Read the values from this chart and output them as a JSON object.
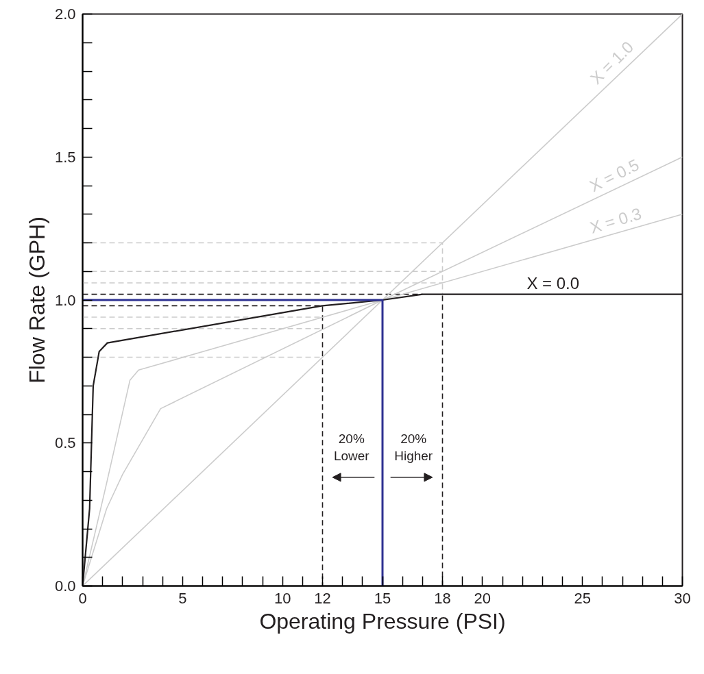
{
  "chart_data": {
    "type": "line",
    "xlabel": "Operating Pressure (PSI)",
    "ylabel": "Flow Rate (GPH)",
    "xlim": [
      0,
      30
    ],
    "ylim": [
      0,
      2.0
    ],
    "xticks": [
      0,
      {
        "value": 1,
        "label": null
      },
      {
        "value": 2,
        "label": null
      },
      {
        "value": 3,
        "label": null
      },
      {
        "value": 4,
        "label": null
      },
      5,
      {
        "value": 6,
        "label": null
      },
      {
        "value": 7,
        "label": null
      },
      {
        "value": 8,
        "label": null
      },
      {
        "value": 9,
        "label": null
      },
      10,
      {
        "value": 11,
        "label": null
      },
      12,
      {
        "value": 13,
        "label": null
      },
      {
        "value": 14,
        "label": null
      },
      15,
      {
        "value": 16,
        "label": null
      },
      {
        "value": 17,
        "label": null
      },
      18,
      {
        "value": 19,
        "label": null
      },
      20,
      {
        "value": 21,
        "label": null
      },
      {
        "value": 22,
        "label": null
      },
      {
        "value": 23,
        "label": null
      },
      {
        "value": 24,
        "label": null
      },
      25,
      {
        "value": 26,
        "label": null
      },
      {
        "value": 27,
        "label": null
      },
      {
        "value": 28,
        "label": null
      },
      {
        "value": 29,
        "label": null
      },
      30
    ],
    "yticks": [
      {
        "value": 0,
        "label": "0.0"
      },
      {
        "value": 0.1,
        "label": null
      },
      {
        "value": 0.2,
        "label": null
      },
      {
        "value": 0.3,
        "label": null
      },
      {
        "value": 0.4,
        "label": null
      },
      0.5,
      {
        "value": 0.6,
        "label": null
      },
      {
        "value": 0.7,
        "label": null
      },
      {
        "value": 0.8,
        "label": null
      },
      {
        "value": 0.9,
        "label": null
      },
      {
        "value": 1.0,
        "label": "1.0"
      },
      {
        "value": 1.1,
        "label": null
      },
      {
        "value": 1.2,
        "label": null
      },
      {
        "value": 1.3,
        "label": null
      },
      {
        "value": 1.4,
        "label": null
      },
      1.5,
      {
        "value": 1.6,
        "label": null
      },
      {
        "value": 1.7,
        "label": null
      },
      {
        "value": 1.8,
        "label": null
      },
      {
        "value": 1.9,
        "label": null
      },
      {
        "value": 2.0,
        "label": "2.0"
      }
    ],
    "grid": false,
    "legend": false,
    "marker": "none",
    "series": [
      {
        "line_style": "dashed",
        "color": "#cccccc",
        "x": [
          0,
          18,
          18
        ],
        "values": [
          1.2,
          1.2,
          1.02
        ]
      },
      {
        "line_style": "dashed",
        "color": "#cccccc",
        "x": [
          0,
          18
        ],
        "values": [
          1.1,
          1.1
        ]
      },
      {
        "line_style": "dashed",
        "color": "#cccccc",
        "x": [
          0,
          18
        ],
        "values": [
          1.06,
          1.06
        ]
      },
      {
        "line_style": "dashed",
        "color": "#cccccc",
        "x": [
          0,
          12
        ],
        "values": [
          0.94,
          0.94
        ]
      },
      {
        "line_style": "dashed",
        "color": "#cccccc",
        "x": [
          0,
          12
        ],
        "values": [
          0.9,
          0.9
        ]
      },
      {
        "line_style": "dashed",
        "color": "#cccccc",
        "x": [
          0,
          12
        ],
        "values": [
          0.8,
          0.8
        ]
      },
      {
        "line_style": "dashed",
        "color": "#231f20",
        "x": [
          0,
          17
        ],
        "values": [
          1.02,
          1.02
        ]
      },
      {
        "line_style": "dashed",
        "color": "#231f20",
        "x": [
          0,
          12,
          12
        ],
        "values": [
          0.98,
          0.98,
          0
        ]
      },
      {
        "line_style": "dashed",
        "color": "#231f20",
        "x": [
          18,
          18
        ],
        "values": [
          0,
          1.02
        ]
      },
      {
        "name": "X = 1.0",
        "color": "#cccccc",
        "x": [
          0,
          30
        ],
        "values": [
          0,
          2.0
        ]
      },
      {
        "name": "X = 0.5",
        "color": "#cccccc",
        "x": [
          0,
          1.2,
          2.0,
          3.9,
          15,
          30
        ],
        "values": [
          0,
          0.27,
          0.39,
          0.62,
          1.0,
          1.5
        ]
      },
      {
        "name": "X = 0.3",
        "color": "#cccccc",
        "x": [
          0,
          1.17,
          2.37,
          2.8,
          15,
          30
        ],
        "values": [
          0,
          0.35,
          0.72,
          0.755,
          1.0,
          1.3
        ]
      },
      {
        "name": "X = 0.0",
        "color": "#231f20",
        "x": [
          0,
          0.35,
          0.53,
          0.83,
          1.24,
          12,
          15,
          17,
          30
        ],
        "values": [
          0,
          0.27,
          0.7,
          0.82,
          0.85,
          0.98,
          1.0,
          1.02,
          1.02
        ]
      },
      {
        "color": "#2e3192",
        "x": [
          0,
          15,
          15
        ],
        "values": [
          1.0,
          1.0,
          0
        ]
      }
    ],
    "annotations": [
      "20%\nLower",
      "20%\nHigher"
    ]
  }
}
